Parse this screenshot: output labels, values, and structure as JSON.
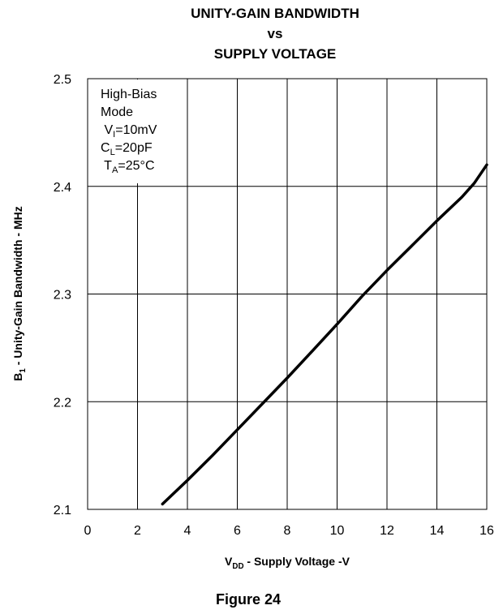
{
  "chart_data": {
    "type": "line",
    "title_lines": [
      "UNITY-GAIN BANDWIDTH",
      "vs",
      "SUPPLY VOLTAGE"
    ],
    "xlabel": {
      "main": "V",
      "sub": "DD",
      "rest": " - Supply Voltage -V"
    },
    "ylabel": {
      "main": "B",
      "sub": "1",
      "rest": " - Unity-Gain Bandwidth - MHz"
    },
    "xlim": [
      0,
      16
    ],
    "ylim": [
      2.1,
      2.5
    ],
    "xticks": [
      0,
      2,
      4,
      6,
      8,
      10,
      12,
      14,
      16
    ],
    "xtick_labels": [
      "0",
      "2",
      "4",
      "6",
      "8",
      "10",
      "12",
      "14",
      "16"
    ],
    "yticks": [
      2.1,
      2.2,
      2.3,
      2.4,
      2.5
    ],
    "ytick_labels": [
      "2.1",
      "2.2",
      "2.3",
      "2.4",
      "2.5"
    ],
    "grid": true,
    "series": [
      {
        "x": [
          3,
          4,
          5,
          6,
          7,
          8,
          9,
          10,
          11,
          12,
          13,
          14,
          15,
          15.5,
          16
        ],
        "y": [
          2.105,
          2.127,
          2.15,
          2.174,
          2.198,
          2.222,
          2.247,
          2.272,
          2.298,
          2.322,
          2.345,
          2.368,
          2.39,
          2.403,
          2.42
        ],
        "color": "#000000"
      }
    ],
    "annotation_lines": [
      {
        "main": "High-Bias",
        "sub": "",
        "rest": ""
      },
      {
        "main": "Mode",
        "sub": "",
        "rest": ""
      },
      {
        "main": " V",
        "sub": "I",
        "rest": "=10mV"
      },
      {
        "main": "C",
        "sub": "L",
        "rest": "=20pF"
      },
      {
        "main": " T",
        "sub": "A",
        "rest": "=25°C"
      }
    ]
  },
  "caption": "Figure 24"
}
